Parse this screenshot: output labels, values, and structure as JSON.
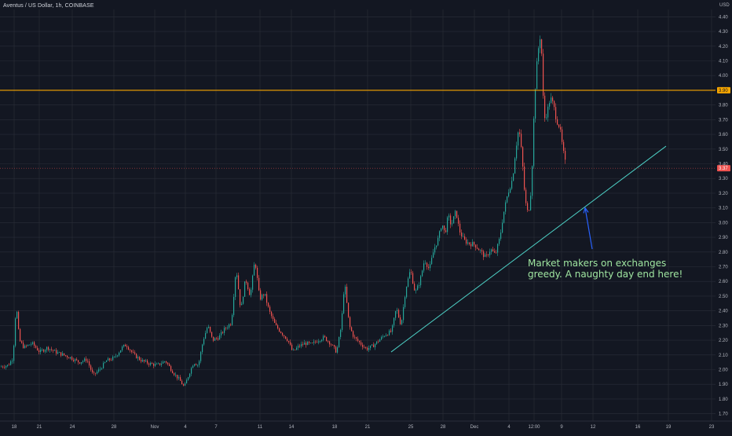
{
  "header": {
    "symbol_line": "Aventus / US Dollar, 1h, COINBASE",
    "currency_label": "USD"
  },
  "annotation": {
    "text_line1": "Market makers on exchanges",
    "text_line2": "greedy. A naughty day end here!"
  },
  "price_tags": {
    "resistance_label": "3.90",
    "last_price_label": "3.37"
  },
  "colors": {
    "background": "#131722",
    "grid": "#2a2e39",
    "up_candle": "#26a69a",
    "down_candle": "#ef5350",
    "resistance_line": "#f7a600",
    "trend_line": "#4dd0c5",
    "arrow": "#2962ff",
    "annotation_text": "#9fe5a0",
    "last_price_tag": "#ef5350"
  },
  "chart_data": {
    "type": "candlestick",
    "title": "Aventus / US Dollar, 1h, COINBASE",
    "ylabel": "USD",
    "ylim": [
      1.65,
      4.45
    ],
    "y_ticks": [
      "1.70",
      "1.80",
      "1.90",
      "2.00",
      "2.10",
      "2.20",
      "2.30",
      "2.40",
      "2.50",
      "2.60",
      "2.70",
      "2.80",
      "2.90",
      "3.00",
      "3.10",
      "3.20",
      "3.30",
      "3.40",
      "3.50",
      "3.60",
      "3.70",
      "3.80",
      "3.90",
      "4.00",
      "4.10",
      "4.20",
      "4.30",
      "4.40"
    ],
    "x_ticks": [
      "18",
      "21",
      "24",
      "28",
      "Nov",
      "4",
      "7",
      "11",
      "14",
      "18",
      "21",
      "25",
      "28",
      "Dec",
      "4",
      "12:00",
      "9",
      "12",
      "16",
      "19",
      "23"
    ],
    "grid": true,
    "series": [
      {
        "price_path": [
          [
            0,
            2.02
          ],
          [
            10,
            2.03
          ],
          [
            16,
            2.08
          ],
          [
            20,
            2.45
          ],
          [
            24,
            2.2
          ],
          [
            30,
            2.15
          ],
          [
            40,
            2.18
          ],
          [
            50,
            2.12
          ],
          [
            60,
            2.15
          ],
          [
            70,
            2.12
          ],
          [
            80,
            2.1
          ],
          [
            90,
            2.08
          ],
          [
            100,
            2.05
          ],
          [
            110,
            2.07
          ],
          [
            118,
            1.96
          ],
          [
            126,
            2.0
          ],
          [
            135,
            2.06
          ],
          [
            145,
            2.08
          ],
          [
            155,
            2.15
          ],
          [
            160,
            2.17
          ],
          [
            170,
            2.1
          ],
          [
            180,
            2.06
          ],
          [
            190,
            2.04
          ],
          [
            200,
            2.03
          ],
          [
            210,
            2.06
          ],
          [
            220,
            1.98
          ],
          [
            228,
            1.93
          ],
          [
            234,
            1.88
          ],
          [
            240,
            1.97
          ],
          [
            246,
            2.05
          ],
          [
            252,
            2.03
          ],
          [
            258,
            2.2
          ],
          [
            264,
            2.3
          ],
          [
            270,
            2.2
          ],
          [
            278,
            2.22
          ],
          [
            286,
            2.28
          ],
          [
            294,
            2.32
          ],
          [
            300,
            2.7
          ],
          [
            306,
            2.4
          ],
          [
            312,
            2.62
          ],
          [
            318,
            2.5
          ],
          [
            324,
            2.75
          ],
          [
            330,
            2.48
          ],
          [
            336,
            2.52
          ],
          [
            342,
            2.4
          ],
          [
            350,
            2.3
          ],
          [
            358,
            2.25
          ],
          [
            366,
            2.2
          ],
          [
            372,
            2.12
          ],
          [
            380,
            2.16
          ],
          [
            388,
            2.18
          ],
          [
            396,
            2.17
          ],
          [
            404,
            2.2
          ],
          [
            412,
            2.22
          ],
          [
            420,
            2.18
          ],
          [
            428,
            2.12
          ],
          [
            434,
            2.3
          ],
          [
            438,
            2.6
          ],
          [
            444,
            2.3
          ],
          [
            450,
            2.22
          ],
          [
            458,
            2.18
          ],
          [
            466,
            2.14
          ],
          [
            474,
            2.16
          ],
          [
            482,
            2.2
          ],
          [
            490,
            2.24
          ],
          [
            498,
            2.26
          ],
          [
            504,
            2.42
          ],
          [
            510,
            2.3
          ],
          [
            516,
            2.55
          ],
          [
            522,
            2.68
          ],
          [
            528,
            2.52
          ],
          [
            534,
            2.6
          ],
          [
            540,
            2.75
          ],
          [
            546,
            2.68
          ],
          [
            552,
            2.82
          ],
          [
            558,
            2.9
          ],
          [
            562,
            3.0
          ],
          [
            566,
            2.92
          ],
          [
            570,
            3.05
          ],
          [
            574,
            2.98
          ],
          [
            580,
            3.08
          ],
          [
            584,
            2.95
          ],
          [
            590,
            2.88
          ],
          [
            596,
            2.86
          ],
          [
            604,
            2.85
          ],
          [
            612,
            2.8
          ],
          [
            618,
            2.76
          ],
          [
            624,
            2.82
          ],
          [
            630,
            2.78
          ],
          [
            636,
            2.9
          ],
          [
            640,
            3.05
          ],
          [
            646,
            3.2
          ],
          [
            652,
            3.3
          ],
          [
            656,
            3.5
          ],
          [
            660,
            3.65
          ],
          [
            664,
            3.45
          ],
          [
            668,
            3.15
          ],
          [
            672,
            3.05
          ],
          [
            676,
            3.25
          ],
          [
            680,
            3.85
          ],
          [
            684,
            4.15
          ],
          [
            688,
            4.3
          ],
          [
            690,
            4.0
          ],
          [
            692,
            3.7
          ],
          [
            696,
            3.75
          ],
          [
            700,
            3.85
          ],
          [
            704,
            3.8
          ],
          [
            708,
            3.7
          ],
          [
            712,
            3.65
          ],
          [
            716,
            3.5
          ],
          [
            720,
            3.38
          ]
        ]
      }
    ],
    "resistance_level": 3.9,
    "last_price": 3.37,
    "trendline": {
      "from": [
        498,
        2.12
      ],
      "to": [
        848,
        3.52
      ]
    },
    "annotation_arrow": {
      "from": [
        754,
        2.82
      ],
      "to": [
        745,
        3.1
      ]
    }
  }
}
